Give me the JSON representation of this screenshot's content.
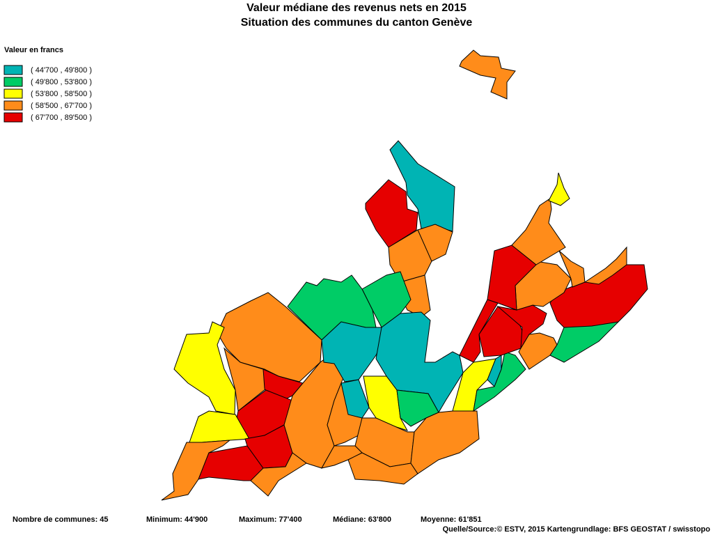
{
  "header": {
    "title": [
      "Valeur médiane des revenus nets en 2015",
      "Situation des communes du canton Genève"
    ]
  },
  "legend": {
    "title": "Valeur en francs",
    "classes": [
      {
        "label": "( 44'700 , 49'800 )",
        "color": "#00b4b4"
      },
      {
        "label": "( 49'800 , 53'800 )",
        "color": "#00cc66"
      },
      {
        "label": "( 53'800 , 58'500 )",
        "color": "#ffff00"
      },
      {
        "label": "( 58'500 , 67'700 )",
        "color": "#ff8c1a"
      },
      {
        "label": "( 67'700 , 89'500 )",
        "color": "#e60000"
      }
    ]
  },
  "footer": {
    "stats": [
      "Nombre de communes: 45",
      "Minimum: 44'900",
      "Maximum: 77'400",
      "Médiane: 63'800",
      "Moyenne: 61'851"
    ],
    "source": "Quelle/Source:© ESTV, 2015 Kartengrundlage: BFS GEOSTAT / swisstopo"
  }
}
